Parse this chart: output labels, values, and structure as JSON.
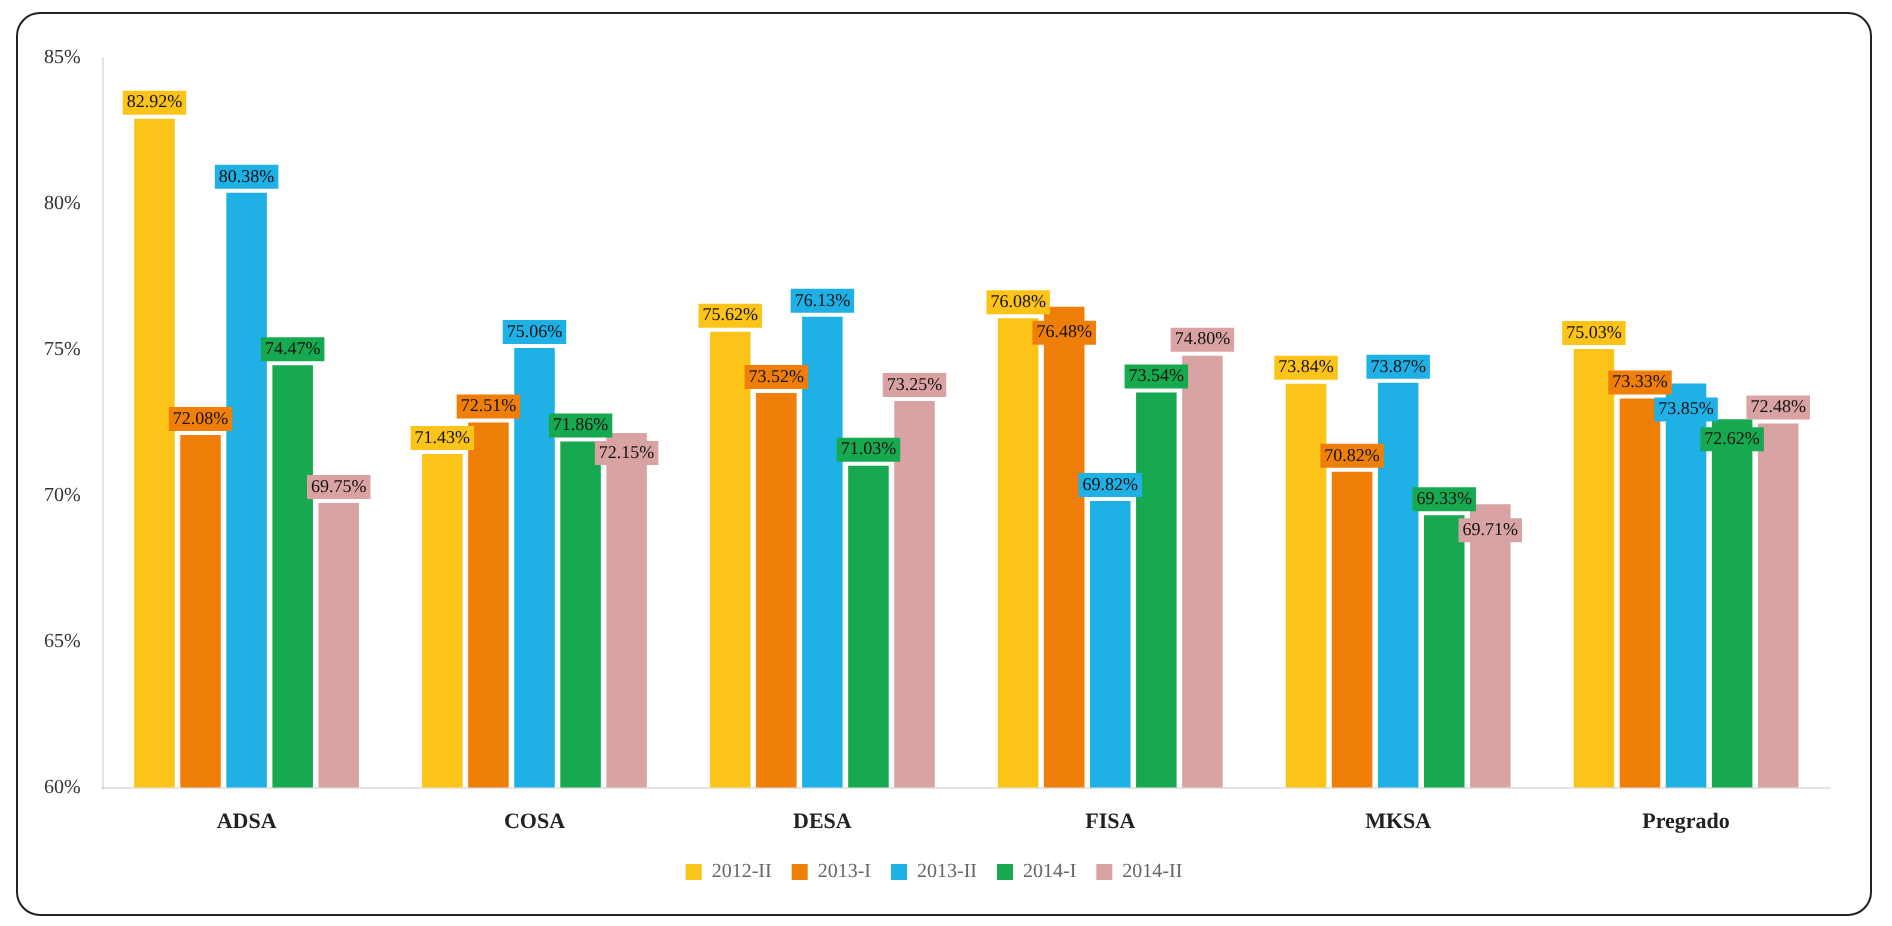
{
  "chart_data": {
    "type": "bar",
    "categories": [
      "ADSA",
      "COSA",
      "DESA",
      "FISA",
      "MKSA",
      "Pregrado"
    ],
    "series": [
      {
        "name": "2012-II",
        "color": "#fcc419",
        "values": [
          82.92,
          71.43,
          75.62,
          76.08,
          73.84,
          75.03
        ],
        "value_labels": [
          "82.92%",
          "71.43%",
          "75.62%",
          "76.08%",
          "73.84%",
          "75.03%"
        ]
      },
      {
        "name": "2013-I",
        "color": "#f07f09",
        "values": [
          72.08,
          72.51,
          73.52,
          76.48,
          70.82,
          73.33
        ],
        "value_labels": [
          "72.08%",
          "72.51%",
          "73.52%",
          "76.48%",
          "70.82%",
          "73.33%"
        ]
      },
      {
        "name": "2013-II",
        "color": "#1fb0e6",
        "values": [
          80.38,
          75.06,
          76.13,
          69.82,
          73.87,
          73.85
        ],
        "value_labels": [
          "80.38%",
          "75.06%",
          "76.13%",
          "69.82%",
          "73.87%",
          "73.85%"
        ]
      },
      {
        "name": "2014-I",
        "color": "#16a94f",
        "values": [
          74.47,
          71.86,
          71.03,
          73.54,
          69.33,
          72.62
        ],
        "value_labels": [
          "74.47%",
          "71.86%",
          "71.03%",
          "73.54%",
          "69.33%",
          "72.62%"
        ]
      },
      {
        "name": "2014-II",
        "color": "#d9a3a3",
        "values": [
          69.75,
          72.15,
          73.25,
          74.8,
          69.71,
          72.48
        ],
        "value_labels": [
          "69.75%",
          "72.15%",
          "73.25%",
          "74.80%",
          "69.71%",
          "72.48%"
        ]
      }
    ],
    "ylim": [
      60,
      85
    ],
    "yticks": [
      {
        "value": 60,
        "label": "60%"
      },
      {
        "value": 65,
        "label": "65%"
      },
      {
        "value": 70,
        "label": "70%"
      },
      {
        "value": 75,
        "label": "75%"
      },
      {
        "value": 80,
        "label": "80%"
      },
      {
        "value": 85,
        "label": "85%"
      }
    ],
    "grid": false,
    "legend": "bottom"
  }
}
